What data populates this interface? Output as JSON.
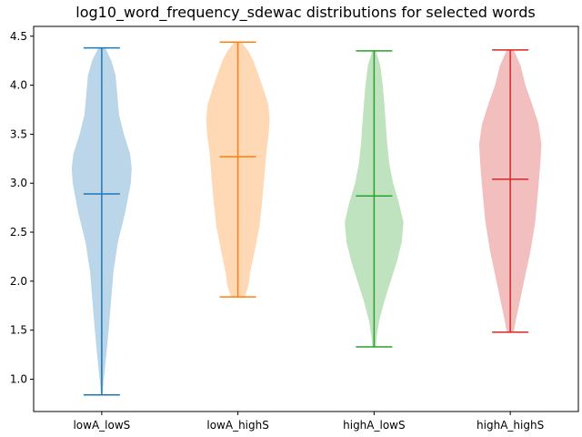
{
  "chart_data": {
    "type": "violin",
    "title": "log10_word_frequency_sdewac distributions for selected words",
    "xlabel": "",
    "ylabel": "",
    "ylim": [
      0.67,
      4.6
    ],
    "yticks": [
      "1.0",
      "1.5",
      "2.0",
      "2.5",
      "3.0",
      "3.5",
      "4.0",
      "4.5"
    ],
    "grid": false,
    "series": [
      {
        "category": "lowA_lowS",
        "color": "#1f77b4",
        "min": 0.84,
        "max": 4.38,
        "median": 2.89,
        "density": [
          [
            0.84,
            0.02
          ],
          [
            1.0,
            0.06
          ],
          [
            1.2,
            0.12
          ],
          [
            1.5,
            0.2
          ],
          [
            1.8,
            0.27
          ],
          [
            2.1,
            0.34
          ],
          [
            2.4,
            0.47
          ],
          [
            2.7,
            0.68
          ],
          [
            3.0,
            0.84
          ],
          [
            3.15,
            0.87
          ],
          [
            3.3,
            0.82
          ],
          [
            3.5,
            0.64
          ],
          [
            3.7,
            0.5
          ],
          [
            3.9,
            0.45
          ],
          [
            4.1,
            0.4
          ],
          [
            4.25,
            0.28
          ],
          [
            4.38,
            0.1
          ]
        ]
      },
      {
        "category": "lowA_highS",
        "color": "#ff7f0e",
        "min": 1.84,
        "max": 4.44,
        "median": 3.27,
        "density": [
          [
            1.84,
            0.2
          ],
          [
            1.95,
            0.3
          ],
          [
            2.1,
            0.36
          ],
          [
            2.3,
            0.48
          ],
          [
            2.55,
            0.62
          ],
          [
            2.8,
            0.7
          ],
          [
            3.05,
            0.76
          ],
          [
            3.3,
            0.82
          ],
          [
            3.5,
            0.89
          ],
          [
            3.65,
            0.92
          ],
          [
            3.8,
            0.88
          ],
          [
            3.95,
            0.75
          ],
          [
            4.1,
            0.6
          ],
          [
            4.25,
            0.45
          ],
          [
            4.35,
            0.3
          ],
          [
            4.44,
            0.1
          ]
        ]
      },
      {
        "category": "highA_lowS",
        "color": "#2ca02c",
        "min": 1.33,
        "max": 4.35,
        "median": 2.87,
        "density": [
          [
            1.33,
            0.05
          ],
          [
            1.45,
            0.08
          ],
          [
            1.6,
            0.15
          ],
          [
            1.8,
            0.3
          ],
          [
            2.0,
            0.48
          ],
          [
            2.2,
            0.66
          ],
          [
            2.4,
            0.8
          ],
          [
            2.6,
            0.85
          ],
          [
            2.8,
            0.72
          ],
          [
            3.0,
            0.55
          ],
          [
            3.2,
            0.44
          ],
          [
            3.4,
            0.38
          ],
          [
            3.6,
            0.34
          ],
          [
            3.8,
            0.3
          ],
          [
            4.0,
            0.25
          ],
          [
            4.2,
            0.18
          ],
          [
            4.35,
            0.05
          ]
        ]
      },
      {
        "category": "highA_highS",
        "color": "#d62728",
        "min": 1.48,
        "max": 4.36,
        "median": 3.04,
        "density": [
          [
            1.48,
            0.1
          ],
          [
            1.6,
            0.16
          ],
          [
            1.8,
            0.28
          ],
          [
            2.0,
            0.4
          ],
          [
            2.3,
            0.58
          ],
          [
            2.6,
            0.72
          ],
          [
            2.9,
            0.8
          ],
          [
            3.2,
            0.87
          ],
          [
            3.4,
            0.9
          ],
          [
            3.6,
            0.82
          ],
          [
            3.8,
            0.64
          ],
          [
            4.0,
            0.44
          ],
          [
            4.2,
            0.3
          ],
          [
            4.36,
            0.1
          ]
        ]
      }
    ]
  }
}
